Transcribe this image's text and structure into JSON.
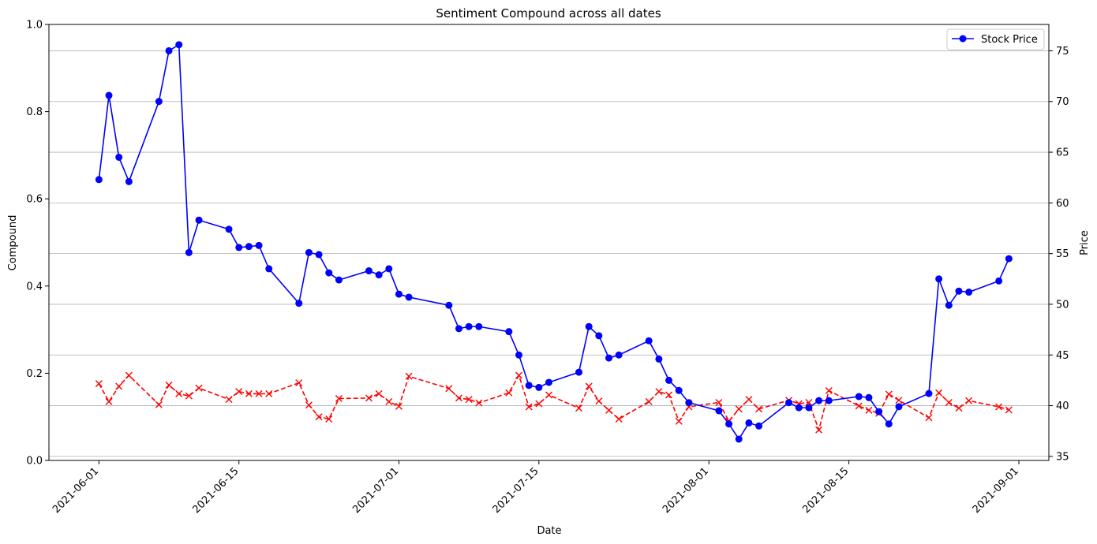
{
  "chart_data": {
    "type": "line",
    "title": "Sentiment Compound across all dates",
    "xlabel": "Date",
    "ylabel_left": "Compound",
    "ylabel_right": "Price",
    "x_ticks": [
      "2021-06-01",
      "2021-06-15",
      "2021-07-01",
      "2021-07-15",
      "2021-08-01",
      "2021-08-15",
      "2021-09-01"
    ],
    "y_left_ticks": [
      "0.0",
      "0.2",
      "0.4",
      "0.6",
      "0.8",
      "1.0"
    ],
    "y_right_ticks": [
      "35",
      "40",
      "45",
      "50",
      "55",
      "60",
      "65",
      "70",
      "75"
    ],
    "ylim_left": [
      0,
      1
    ],
    "ylim_right": [
      34.6,
      77.6
    ],
    "xlim": [
      "2021-05-27",
      "2021-09-04"
    ],
    "grid": "horizontal lines at right-axis ticks",
    "legend_position": "top-right",
    "colors": {
      "price": "#0000ff",
      "compound": "#ff0000"
    },
    "series": [
      {
        "name": "Stock Price",
        "axis": "right",
        "style": "solid line with circle markers",
        "points": [
          [
            "2021-06-01",
            62.3
          ],
          [
            "2021-06-02",
            70.6
          ],
          [
            "2021-06-03",
            64.5
          ],
          [
            "2021-06-04",
            62.1
          ],
          [
            "2021-06-07",
            70.0
          ],
          [
            "2021-06-08",
            75.0
          ],
          [
            "2021-06-09",
            75.6
          ],
          [
            "2021-06-10",
            55.1
          ],
          [
            "2021-06-11",
            58.3
          ],
          [
            "2021-06-14",
            57.4
          ],
          [
            "2021-06-15",
            55.6
          ],
          [
            "2021-06-16",
            55.7
          ],
          [
            "2021-06-17",
            55.8
          ],
          [
            "2021-06-18",
            53.5
          ],
          [
            "2021-06-21",
            50.1
          ],
          [
            "2021-06-22",
            55.1
          ],
          [
            "2021-06-23",
            54.9
          ],
          [
            "2021-06-24",
            53.1
          ],
          [
            "2021-06-25",
            52.4
          ],
          [
            "2021-06-28",
            53.3
          ],
          [
            "2021-06-29",
            52.9
          ],
          [
            "2021-06-30",
            53.5
          ],
          [
            "2021-07-01",
            51.0
          ],
          [
            "2021-07-02",
            50.7
          ],
          [
            "2021-07-06",
            49.9
          ],
          [
            "2021-07-07",
            47.6
          ],
          [
            "2021-07-08",
            47.8
          ],
          [
            "2021-07-09",
            47.8
          ],
          [
            "2021-07-12",
            47.3
          ],
          [
            "2021-07-13",
            45.0
          ],
          [
            "2021-07-14",
            42.0
          ],
          [
            "2021-07-15",
            41.8
          ],
          [
            "2021-07-16",
            42.3
          ],
          [
            "2021-07-19",
            43.3
          ],
          [
            "2021-07-20",
            47.8
          ],
          [
            "2021-07-21",
            46.9
          ],
          [
            "2021-07-22",
            44.7
          ],
          [
            "2021-07-23",
            45.0
          ],
          [
            "2021-07-26",
            46.4
          ],
          [
            "2021-07-27",
            44.6
          ],
          [
            "2021-07-28",
            42.5
          ],
          [
            "2021-07-29",
            41.5
          ],
          [
            "2021-07-30",
            40.3
          ],
          [
            "2021-08-02",
            39.5
          ],
          [
            "2021-08-03",
            38.2
          ],
          [
            "2021-08-04",
            36.7
          ],
          [
            "2021-08-05",
            38.3
          ],
          [
            "2021-08-06",
            38.0
          ],
          [
            "2021-08-09",
            40.3
          ],
          [
            "2021-08-10",
            39.8
          ],
          [
            "2021-08-11",
            39.8
          ],
          [
            "2021-08-12",
            40.5
          ],
          [
            "2021-08-13",
            40.5
          ],
          [
            "2021-08-16",
            40.9
          ],
          [
            "2021-08-17",
            40.8
          ],
          [
            "2021-08-18",
            39.4
          ],
          [
            "2021-08-19",
            38.2
          ],
          [
            "2021-08-20",
            39.9
          ],
          [
            "2021-08-23",
            41.2
          ],
          [
            "2021-08-24",
            52.5
          ],
          [
            "2021-08-25",
            49.9
          ],
          [
            "2021-08-26",
            51.3
          ],
          [
            "2021-08-27",
            51.2
          ],
          [
            "2021-08-30",
            52.3
          ],
          [
            "2021-08-31",
            54.5
          ]
        ]
      },
      {
        "name": "",
        "axis": "left",
        "style": "dashed line with x markers",
        "points": [
          [
            "2021-06-01",
            0.176
          ],
          [
            "2021-06-02",
            0.135
          ],
          [
            "2021-06-03",
            0.17
          ],
          [
            "2021-06-04",
            0.195
          ],
          [
            "2021-06-07",
            0.128
          ],
          [
            "2021-06-08",
            0.173
          ],
          [
            "2021-06-09",
            0.153
          ],
          [
            "2021-06-10",
            0.148
          ],
          [
            "2021-06-11",
            0.166
          ],
          [
            "2021-06-14",
            0.14
          ],
          [
            "2021-06-15",
            0.158
          ],
          [
            "2021-06-16",
            0.153
          ],
          [
            "2021-06-17",
            0.153
          ],
          [
            "2021-06-18",
            0.153
          ],
          [
            "2021-06-21",
            0.178
          ],
          [
            "2021-06-22",
            0.127
          ],
          [
            "2021-06-23",
            0.1
          ],
          [
            "2021-06-24",
            0.095
          ],
          [
            "2021-06-25",
            0.142
          ],
          [
            "2021-06-28",
            0.143
          ],
          [
            "2021-06-29",
            0.153
          ],
          [
            "2021-06-30",
            0.135
          ],
          [
            "2021-07-01",
            0.124
          ],
          [
            "2021-07-02",
            0.193
          ],
          [
            "2021-07-06",
            0.165
          ],
          [
            "2021-07-07",
            0.143
          ],
          [
            "2021-07-08",
            0.14
          ],
          [
            "2021-07-09",
            0.132
          ],
          [
            "2021-07-12",
            0.155
          ],
          [
            "2021-07-13",
            0.195
          ],
          [
            "2021-07-14",
            0.123
          ],
          [
            "2021-07-15",
            0.13
          ],
          [
            "2021-07-16",
            0.15
          ],
          [
            "2021-07-19",
            0.12
          ],
          [
            "2021-07-20",
            0.17
          ],
          [
            "2021-07-21",
            0.136
          ],
          [
            "2021-07-22",
            0.115
          ],
          [
            "2021-07-23",
            0.095
          ],
          [
            "2021-07-26",
            0.135
          ],
          [
            "2021-07-27",
            0.158
          ],
          [
            "2021-07-28",
            0.15
          ],
          [
            "2021-07-29",
            0.09
          ],
          [
            "2021-07-30",
            0.123
          ],
          [
            "2021-08-02",
            0.133
          ],
          [
            "2021-08-03",
            0.09
          ],
          [
            "2021-08-04",
            0.118
          ],
          [
            "2021-08-05",
            0.14
          ],
          [
            "2021-08-06",
            0.118
          ],
          [
            "2021-08-09",
            0.138
          ],
          [
            "2021-08-10",
            0.13
          ],
          [
            "2021-08-11",
            0.133
          ],
          [
            "2021-08-12",
            0.07
          ],
          [
            "2021-08-13",
            0.16
          ],
          [
            "2021-08-16",
            0.125
          ],
          [
            "2021-08-17",
            0.115
          ],
          [
            "2021-08-18",
            0.108
          ],
          [
            "2021-08-19",
            0.152
          ],
          [
            "2021-08-20",
            0.138
          ],
          [
            "2021-08-23",
            0.098
          ],
          [
            "2021-08-24",
            0.155
          ],
          [
            "2021-08-25",
            0.133
          ],
          [
            "2021-08-26",
            0.12
          ],
          [
            "2021-08-27",
            0.137
          ],
          [
            "2021-08-30",
            0.123
          ],
          [
            "2021-08-31",
            0.116
          ]
        ]
      }
    ]
  }
}
